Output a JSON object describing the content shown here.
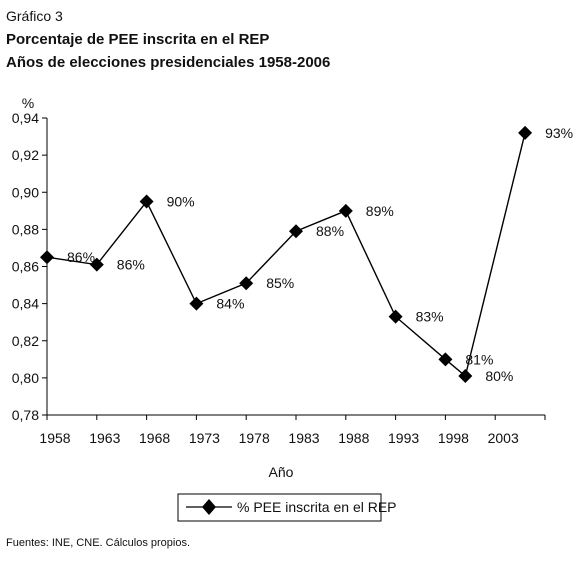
{
  "caption": "Gráfico 3",
  "source": "Fuentes: INE, CNE. Cálculos propios.",
  "chart_data": {
    "type": "line",
    "title": "Porcentaje de PEE inscrita en el REP",
    "subtitle": "Años de elecciones presidenciales 1958-2006",
    "xlabel": "Año",
    "ylabel": "%",
    "categories": [
      "1958",
      "1963",
      "1968",
      "1973",
      "1978",
      "1983",
      "1988",
      "1993",
      "1998",
      "2003"
    ],
    "ylim": [
      0.78,
      0.94
    ],
    "yticks": [
      "0,78",
      "0,80",
      "0,82",
      "0,84",
      "0,86",
      "0,88",
      "0,90",
      "0,92",
      "0,94"
    ],
    "grid": false,
    "legend_position": "bottom",
    "series": [
      {
        "name": "% PEE inscrita en el REP",
        "color": "#000000",
        "marker": "diamond",
        "points": [
          {
            "x": 1958,
            "y": 0.865,
            "label": "86%"
          },
          {
            "x": 1963,
            "y": 0.861,
            "label": "86%"
          },
          {
            "x": 1968,
            "y": 0.895,
            "label": "90%"
          },
          {
            "x": 1973,
            "y": 0.84,
            "label": "84%"
          },
          {
            "x": 1978,
            "y": 0.851,
            "label": "85%"
          },
          {
            "x": 1983,
            "y": 0.879,
            "label": "88%"
          },
          {
            "x": 1988,
            "y": 0.89,
            "label": "89%"
          },
          {
            "x": 1993,
            "y": 0.833,
            "label": "83%"
          },
          {
            "x": 1998,
            "y": 0.81,
            "label": "81%"
          },
          {
            "x": 2000,
            "y": 0.801,
            "label": "80%"
          },
          {
            "x": 2006,
            "y": 0.932,
            "label": "93%"
          }
        ]
      }
    ]
  }
}
